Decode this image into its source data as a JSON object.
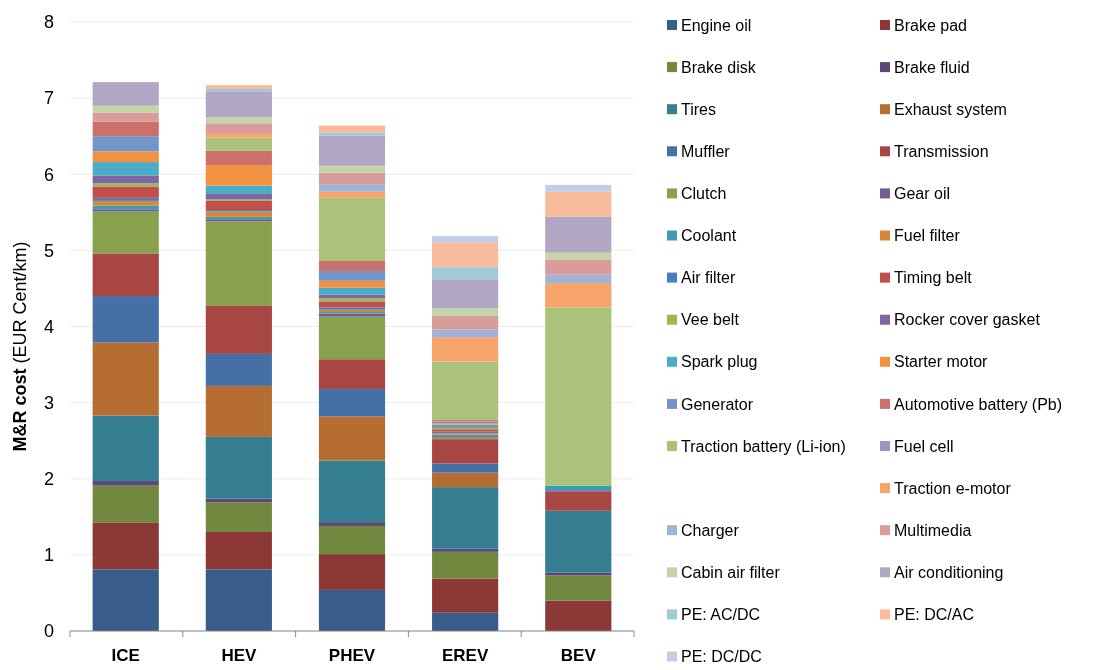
{
  "chart_data": {
    "type": "bar",
    "stacked": true,
    "ylabel": "M&R cost (EUR Cent/km)",
    "categories": [
      "ICE",
      "HEV",
      "PHEV",
      "EREV",
      "BEV"
    ],
    "ylim": [
      0,
      8
    ],
    "yticks": [
      0,
      1,
      2,
      3,
      4,
      5,
      6,
      7,
      8
    ],
    "grid": "y",
    "legend": "right",
    "series": [
      {
        "name": "Engine oil",
        "color": "#385d8a",
        "values": [
          0.81,
          0.81,
          0.54,
          0.24,
          0
        ]
      },
      {
        "name": "Brake pad",
        "color": "#8c3836",
        "values": [
          0.61,
          0.49,
          0.47,
          0.45,
          0.4
        ]
      },
      {
        "name": "Brake disk",
        "color": "#71893f",
        "values": [
          0.49,
          0.39,
          0.37,
          0.35,
          0.33
        ]
      },
      {
        "name": "Brake fluid",
        "color": "#5c4776",
        "values": [
          0.06,
          0.05,
          0.05,
          0.04,
          0.04
        ]
      },
      {
        "name": "Tires",
        "color": "#357d91",
        "values": [
          0.86,
          0.81,
          0.81,
          0.81,
          0.81
        ]
      },
      {
        "name": "Exhaust system",
        "color": "#b66d31",
        "values": [
          0.96,
          0.67,
          0.58,
          0.19,
          0
        ]
      },
      {
        "name": "Muffler",
        "color": "#4470a6",
        "values": [
          0.61,
          0.42,
          0.36,
          0.12,
          0
        ]
      },
      {
        "name": "Transmission",
        "color": "#a74643",
        "values": [
          0.56,
          0.63,
          0.39,
          0.32,
          0.25
        ]
      },
      {
        "name": "Clutch",
        "color": "#87a14c",
        "values": [
          0.55,
          1.11,
          0.56,
          0.02,
          0
        ]
      },
      {
        "name": "Gear oil",
        "color": "#735e94",
        "values": [
          0.03,
          0.03,
          0.04,
          0.02,
          0.02
        ]
      },
      {
        "name": "Coolant",
        "color": "#3f9bb0",
        "values": [
          0.05,
          0.03,
          0.02,
          0.02,
          0.06
        ]
      },
      {
        "name": "Fuel filter",
        "color": "#db8537",
        "values": [
          0.06,
          0.07,
          0.03,
          0.02,
          0
        ]
      },
      {
        "name": "Air filter",
        "color": "#4a7fbf",
        "values": [
          0.04,
          0.02,
          0.03,
          0.02,
          0
        ]
      },
      {
        "name": "Timing belt",
        "color": "#c24f4c",
        "values": [
          0.15,
          0.12,
          0.08,
          0.03,
          0
        ]
      },
      {
        "name": "Vee belt",
        "color": "#9ab75a",
        "values": [
          0.04,
          0.02,
          0.04,
          0.02,
          0
        ]
      },
      {
        "name": "Rocker cover gasket",
        "color": "#8065a2",
        "values": [
          0.1,
          0.07,
          0.05,
          0.02,
          0
        ]
      },
      {
        "name": "Spark plug",
        "color": "#4aacc5",
        "values": [
          0.18,
          0.11,
          0.09,
          0.02,
          0
        ]
      },
      {
        "name": "Starter motor",
        "color": "#f0923f",
        "values": [
          0.14,
          0.27,
          0.09,
          0.02,
          0
        ]
      },
      {
        "name": "Generator",
        "color": "#7396c9",
        "values": [
          0.2,
          0,
          0.13,
          0.02,
          0
        ]
      },
      {
        "name": "Automotive battery (Pb)",
        "color": "#cb706d",
        "values": [
          0.19,
          0.19,
          0.13,
          0.02,
          0
        ]
      },
      {
        "name": "Traction battery (Li-ion)",
        "color": "#aac27a",
        "values": [
          0,
          0.17,
          0.83,
          0.77,
          2.34
        ]
      },
      {
        "name": "Fuel cell",
        "color": "#a294be",
        "values": [
          0,
          0,
          0,
          0,
          0
        ]
      },
      {
        "name": "Traction e-motor",
        "color": "#f7a56a",
        "values": [
          0,
          0.05,
          0.08,
          0.32,
          0.32
        ]
      },
      {
        "name": "Charger",
        "color": "#a0b3d6",
        "values": [
          0,
          0,
          0.1,
          0.1,
          0.11
        ]
      },
      {
        "name": "Multimedia",
        "color": "#d99c9a",
        "values": [
          0.12,
          0.14,
          0.15,
          0.18,
          0.2
        ]
      },
      {
        "name": "Cabin air filter",
        "color": "#c3d5a4",
        "values": [
          0.09,
          0.08,
          0.09,
          0.1,
          0.09
        ]
      },
      {
        "name": "Air conditioning",
        "color": "#b1a7c4",
        "values": [
          0.31,
          0.34,
          0.4,
          0.38,
          0.47
        ]
      },
      {
        "name": "PE: AC/DC",
        "color": "#a2c9d9",
        "values": [
          0,
          0.03,
          0.04,
          0.16,
          0
        ]
      },
      {
        "name": "PE: DC/AC",
        "color": "#f8bc9c",
        "values": [
          0,
          0.05,
          0.09,
          0.32,
          0.33
        ]
      },
      {
        "name": "PE: DC/DC",
        "color": "#c4cde3",
        "values": [
          0,
          0,
          0,
          0.09,
          0.09
        ]
      }
    ]
  }
}
